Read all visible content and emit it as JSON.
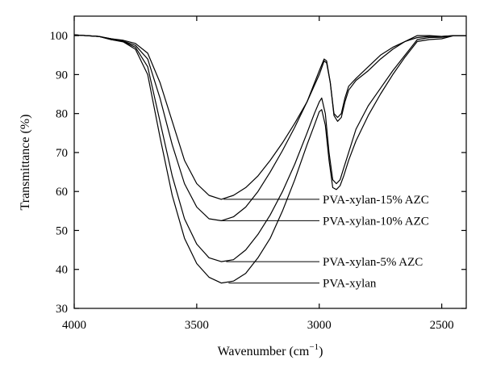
{
  "chart_data": {
    "type": "line",
    "title": "",
    "xlabel": "Wavenumber (cm",
    "xlabel_superscript": "−1",
    "xlabel_suffix": ")",
    "ylabel": "Transmittance (%)",
    "xlim": [
      4000,
      2400
    ],
    "ylim": [
      30,
      105
    ],
    "x_reversed": true,
    "grid": false,
    "x_ticks": [
      4000,
      3500,
      3000,
      2500
    ],
    "y_ticks": [
      30,
      40,
      50,
      60,
      70,
      80,
      90,
      100
    ],
    "series": [
      {
        "name": "PVA-xylan-15% AZC",
        "label_point": [
          3390,
          58
        ],
        "points": [
          [
            4000,
            100.2
          ],
          [
            3900,
            99.8
          ],
          [
            3850,
            99.2
          ],
          [
            3800,
            98.8
          ],
          [
            3750,
            98
          ],
          [
            3700,
            95.5
          ],
          [
            3650,
            88
          ],
          [
            3600,
            78
          ],
          [
            3550,
            68
          ],
          [
            3500,
            62
          ],
          [
            3450,
            59
          ],
          [
            3400,
            58
          ],
          [
            3350,
            59
          ],
          [
            3300,
            61
          ],
          [
            3250,
            64
          ],
          [
            3200,
            68
          ],
          [
            3150,
            72.5
          ],
          [
            3100,
            77.5
          ],
          [
            3050,
            83
          ],
          [
            3000,
            90
          ],
          [
            2980,
            93.5
          ],
          [
            2970,
            93
          ],
          [
            2955,
            88
          ],
          [
            2940,
            80
          ],
          [
            2925,
            79
          ],
          [
            2910,
            80
          ],
          [
            2895,
            84
          ],
          [
            2880,
            87
          ],
          [
            2850,
            89
          ],
          [
            2800,
            92
          ],
          [
            2750,
            95
          ],
          [
            2700,
            97
          ],
          [
            2650,
            98.5
          ],
          [
            2600,
            99.5
          ],
          [
            2550,
            99.8
          ],
          [
            2500,
            99.8
          ],
          [
            2450,
            100
          ],
          [
            2400,
            100
          ]
        ]
      },
      {
        "name": "PVA-xylan-10% AZC",
        "label_point": [
          3400,
          52.5
        ],
        "points": [
          [
            4000,
            100.2
          ],
          [
            3900,
            99.8
          ],
          [
            3850,
            99.2
          ],
          [
            3800,
            98.6
          ],
          [
            3750,
            97.5
          ],
          [
            3700,
            94
          ],
          [
            3650,
            84
          ],
          [
            3600,
            72
          ],
          [
            3550,
            62
          ],
          [
            3500,
            56
          ],
          [
            3450,
            53
          ],
          [
            3400,
            52.5
          ],
          [
            3350,
            53.5
          ],
          [
            3300,
            56
          ],
          [
            3250,
            60
          ],
          [
            3200,
            65
          ],
          [
            3150,
            70.5
          ],
          [
            3100,
            76.5
          ],
          [
            3050,
            83
          ],
          [
            3000,
            91
          ],
          [
            2980,
            94
          ],
          [
            2970,
            93.5
          ],
          [
            2955,
            88
          ],
          [
            2940,
            79.5
          ],
          [
            2925,
            78
          ],
          [
            2910,
            79
          ],
          [
            2895,
            83
          ],
          [
            2880,
            86
          ],
          [
            2850,
            88.5
          ],
          [
            2800,
            91
          ],
          [
            2750,
            94
          ],
          [
            2700,
            96.5
          ],
          [
            2650,
            98.5
          ],
          [
            2600,
            100
          ],
          [
            2550,
            100
          ],
          [
            2500,
            99.8
          ],
          [
            2450,
            100
          ],
          [
            2400,
            100
          ]
        ]
      },
      {
        "name": "PVA-xylan-5% AZC",
        "label_point": [
          3380,
          42
        ],
        "points": [
          [
            4000,
            100.2
          ],
          [
            3900,
            99.8
          ],
          [
            3850,
            99
          ],
          [
            3800,
            98.5
          ],
          [
            3750,
            97
          ],
          [
            3700,
            92
          ],
          [
            3650,
            78
          ],
          [
            3600,
            64
          ],
          [
            3550,
            53
          ],
          [
            3500,
            46.5
          ],
          [
            3450,
            43
          ],
          [
            3400,
            42
          ],
          [
            3350,
            42.5
          ],
          [
            3300,
            45
          ],
          [
            3250,
            49
          ],
          [
            3200,
            54
          ],
          [
            3150,
            60
          ],
          [
            3100,
            67
          ],
          [
            3050,
            75
          ],
          [
            3020,
            80
          ],
          [
            3000,
            83
          ],
          [
            2990,
            84
          ],
          [
            2975,
            80
          ],
          [
            2960,
            70
          ],
          [
            2945,
            63
          ],
          [
            2930,
            62
          ],
          [
            2915,
            63
          ],
          [
            2900,
            66
          ],
          [
            2880,
            70
          ],
          [
            2850,
            76
          ],
          [
            2800,
            82
          ],
          [
            2750,
            86.5
          ],
          [
            2700,
            91
          ],
          [
            2650,
            95
          ],
          [
            2600,
            99
          ],
          [
            2550,
            99.5
          ],
          [
            2500,
            99.6
          ],
          [
            2450,
            100
          ],
          [
            2400,
            100
          ]
        ]
      },
      {
        "name": "PVA-xylan",
        "label_point": [
          3370,
          36.5
        ],
        "points": [
          [
            4000,
            100.2
          ],
          [
            3900,
            99.8
          ],
          [
            3850,
            99
          ],
          [
            3800,
            98.4
          ],
          [
            3750,
            96.5
          ],
          [
            3700,
            90
          ],
          [
            3650,
            74
          ],
          [
            3600,
            59
          ],
          [
            3550,
            48
          ],
          [
            3500,
            41.5
          ],
          [
            3450,
            38
          ],
          [
            3400,
            36.5
          ],
          [
            3350,
            37
          ],
          [
            3300,
            39
          ],
          [
            3250,
            43
          ],
          [
            3200,
            48
          ],
          [
            3150,
            55
          ],
          [
            3100,
            63
          ],
          [
            3050,
            72
          ],
          [
            3020,
            77
          ],
          [
            3000,
            80.5
          ],
          [
            2990,
            81
          ],
          [
            2975,
            77
          ],
          [
            2960,
            68
          ],
          [
            2945,
            61
          ],
          [
            2930,
            60.5
          ],
          [
            2915,
            61.5
          ],
          [
            2900,
            64
          ],
          [
            2880,
            68
          ],
          [
            2850,
            73
          ],
          [
            2800,
            79.5
          ],
          [
            2750,
            85
          ],
          [
            2700,
            90
          ],
          [
            2650,
            94.5
          ],
          [
            2600,
            98.5
          ],
          [
            2550,
            99
          ],
          [
            2500,
            99.2
          ],
          [
            2450,
            100
          ],
          [
            2400,
            100
          ]
        ]
      }
    ]
  }
}
